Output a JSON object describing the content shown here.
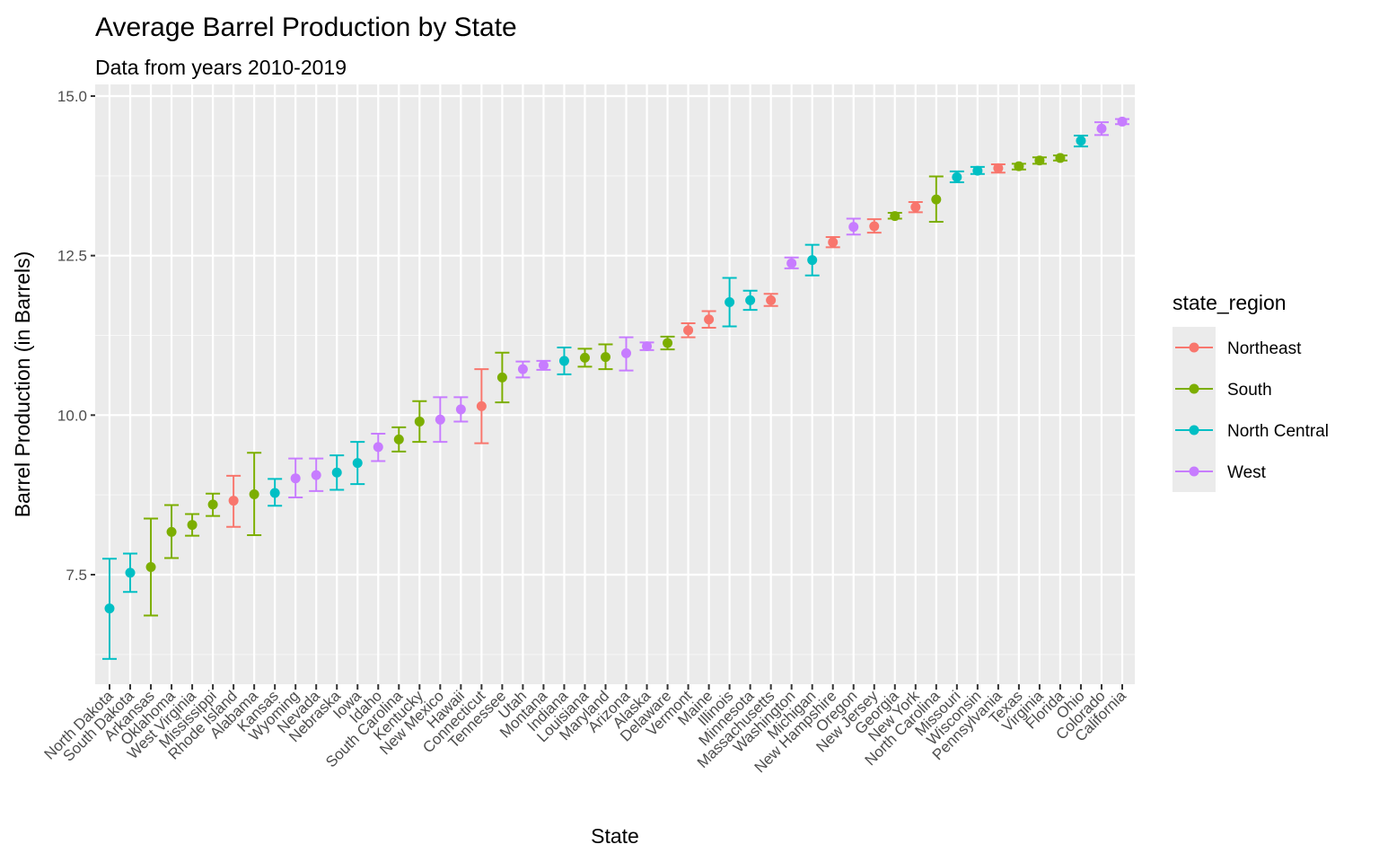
{
  "chart_data": {
    "type": "scatter",
    "title": "Average Barrel Production by State",
    "subtitle": "Data from years 2010-2019",
    "xlabel": "State",
    "ylabel": "Barrel Production (in Barrels)",
    "ylim": [
      5.8,
      15.0
    ],
    "yticks": [
      7.5,
      10.0,
      12.5,
      15.0
    ],
    "ytick_labels": [
      "7.5",
      "10.0",
      "12.5",
      "15.0"
    ],
    "grid": true,
    "legend": {
      "title": "state_region",
      "position": "right",
      "entries": [
        {
          "name": "Northeast",
          "color": "#F8766D"
        },
        {
          "name": "South",
          "color": "#7CAE00"
        },
        {
          "name": "North Central",
          "color": "#00BFC4"
        },
        {
          "name": "West",
          "color": "#C77CFF"
        }
      ]
    },
    "points": [
      {
        "state": "North Dakota",
        "region": "North Central",
        "y": 6.97,
        "ymin": 6.18,
        "ymax": 7.75
      },
      {
        "state": "South Dakota",
        "region": "North Central",
        "y": 7.53,
        "ymin": 7.23,
        "ymax": 7.83
      },
      {
        "state": "Arkansas",
        "region": "South",
        "y": 7.62,
        "ymin": 6.86,
        "ymax": 8.38
      },
      {
        "state": "Oklahoma",
        "region": "South",
        "y": 8.17,
        "ymin": 7.76,
        "ymax": 8.59
      },
      {
        "state": "West Virginia",
        "region": "South",
        "y": 8.28,
        "ymin": 8.11,
        "ymax": 8.45
      },
      {
        "state": "Mississippi",
        "region": "South",
        "y": 8.6,
        "ymin": 8.42,
        "ymax": 8.77
      },
      {
        "state": "Rhode Island",
        "region": "Northeast",
        "y": 8.66,
        "ymin": 8.25,
        "ymax": 9.05
      },
      {
        "state": "Alabama",
        "region": "South",
        "y": 8.76,
        "ymin": 8.12,
        "ymax": 9.41
      },
      {
        "state": "Kansas",
        "region": "North Central",
        "y": 8.78,
        "ymin": 8.58,
        "ymax": 9.0
      },
      {
        "state": "Wyoming",
        "region": "West",
        "y": 9.01,
        "ymin": 8.71,
        "ymax": 9.32
      },
      {
        "state": "Nevada",
        "region": "West",
        "y": 9.06,
        "ymin": 8.81,
        "ymax": 9.32
      },
      {
        "state": "Nebraska",
        "region": "North Central",
        "y": 9.1,
        "ymin": 8.83,
        "ymax": 9.37
      },
      {
        "state": "Iowa",
        "region": "North Central",
        "y": 9.25,
        "ymin": 8.92,
        "ymax": 9.58
      },
      {
        "state": "Idaho",
        "region": "West",
        "y": 9.5,
        "ymin": 9.28,
        "ymax": 9.71
      },
      {
        "state": "South Carolina",
        "region": "South",
        "y": 9.62,
        "ymin": 9.43,
        "ymax": 9.81
      },
      {
        "state": "Kentucky",
        "region": "South",
        "y": 9.9,
        "ymin": 9.58,
        "ymax": 10.22
      },
      {
        "state": "New Mexico",
        "region": "West",
        "y": 9.93,
        "ymin": 9.58,
        "ymax": 10.28
      },
      {
        "state": "Hawaii",
        "region": "West",
        "y": 10.09,
        "ymin": 9.9,
        "ymax": 10.28
      },
      {
        "state": "Connecticut",
        "region": "Northeast",
        "y": 10.14,
        "ymin": 9.56,
        "ymax": 10.72
      },
      {
        "state": "Tennessee",
        "region": "South",
        "y": 10.59,
        "ymin": 10.2,
        "ymax": 10.98
      },
      {
        "state": "Utah",
        "region": "West",
        "y": 10.72,
        "ymin": 10.59,
        "ymax": 10.84
      },
      {
        "state": "Montana",
        "region": "West",
        "y": 10.78,
        "ymin": 10.71,
        "ymax": 10.85
      },
      {
        "state": "Indiana",
        "region": "North Central",
        "y": 10.85,
        "ymin": 10.64,
        "ymax": 11.06
      },
      {
        "state": "Louisiana",
        "region": "South",
        "y": 10.9,
        "ymin": 10.76,
        "ymax": 11.04
      },
      {
        "state": "Maryland",
        "region": "South",
        "y": 10.91,
        "ymin": 10.72,
        "ymax": 11.11
      },
      {
        "state": "Arizona",
        "region": "West",
        "y": 10.97,
        "ymin": 10.7,
        "ymax": 11.22
      },
      {
        "state": "Alaska",
        "region": "West",
        "y": 11.08,
        "ymin": 11.02,
        "ymax": 11.14
      },
      {
        "state": "Delaware",
        "region": "South",
        "y": 11.13,
        "ymin": 11.03,
        "ymax": 11.23
      },
      {
        "state": "Vermont",
        "region": "Northeast",
        "y": 11.33,
        "ymin": 11.22,
        "ymax": 11.44
      },
      {
        "state": "Maine",
        "region": "Northeast",
        "y": 11.5,
        "ymin": 11.37,
        "ymax": 11.63
      },
      {
        "state": "Illinois",
        "region": "North Central",
        "y": 11.77,
        "ymin": 11.39,
        "ymax": 12.15
      },
      {
        "state": "Minnesota",
        "region": "North Central",
        "y": 11.8,
        "ymin": 11.65,
        "ymax": 11.95
      },
      {
        "state": "Massachusetts",
        "region": "Northeast",
        "y": 11.8,
        "ymin": 11.71,
        "ymax": 11.9
      },
      {
        "state": "Washington",
        "region": "West",
        "y": 12.38,
        "ymin": 12.3,
        "ymax": 12.47
      },
      {
        "state": "Michigan",
        "region": "North Central",
        "y": 12.43,
        "ymin": 12.19,
        "ymax": 12.67
      },
      {
        "state": "New Hampshire",
        "region": "Northeast",
        "y": 12.71,
        "ymin": 12.63,
        "ymax": 12.79
      },
      {
        "state": "Oregon",
        "region": "West",
        "y": 12.95,
        "ymin": 12.83,
        "ymax": 13.08
      },
      {
        "state": "New Jersey",
        "region": "Northeast",
        "y": 12.96,
        "ymin": 12.86,
        "ymax": 13.07
      },
      {
        "state": "Georgia",
        "region": "South",
        "y": 13.12,
        "ymin": 13.08,
        "ymax": 13.17
      },
      {
        "state": "New York",
        "region": "Northeast",
        "y": 13.26,
        "ymin": 13.18,
        "ymax": 13.34
      },
      {
        "state": "North Carolina",
        "region": "South",
        "y": 13.38,
        "ymin": 13.03,
        "ymax": 13.74
      },
      {
        "state": "Missouri",
        "region": "North Central",
        "y": 13.73,
        "ymin": 13.65,
        "ymax": 13.82
      },
      {
        "state": "Wisconsin",
        "region": "North Central",
        "y": 13.83,
        "ymin": 13.78,
        "ymax": 13.89
      },
      {
        "state": "Pennsylvania",
        "region": "Northeast",
        "y": 13.87,
        "ymin": 13.8,
        "ymax": 13.93
      },
      {
        "state": "Texas",
        "region": "South",
        "y": 13.9,
        "ymin": 13.85,
        "ymax": 13.94
      },
      {
        "state": "Virginia",
        "region": "South",
        "y": 13.99,
        "ymin": 13.94,
        "ymax": 14.04
      },
      {
        "state": "Florida",
        "region": "South",
        "y": 14.03,
        "ymin": 13.99,
        "ymax": 14.07
      },
      {
        "state": "Ohio",
        "region": "North Central",
        "y": 14.3,
        "ymin": 14.21,
        "ymax": 14.38
      },
      {
        "state": "Colorado",
        "region": "West",
        "y": 14.49,
        "ymin": 14.39,
        "ymax": 14.59
      },
      {
        "state": "California",
        "region": "West",
        "y": 14.6,
        "ymin": 14.56,
        "ymax": 14.64
      }
    ]
  }
}
